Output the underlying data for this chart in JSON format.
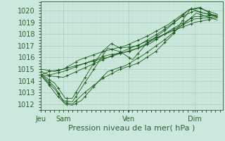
{
  "xlabel": "Pression niveau de la mer( hPa )",
  "ylim": [
    1011.5,
    1020.8
  ],
  "bg_color": "#cce8dd",
  "grid_major_color": "#a8c8b8",
  "grid_minor_color": "#c0ddd0",
  "line_color": "#1a5c1a",
  "yticks": [
    1012,
    1013,
    1014,
    1015,
    1016,
    1017,
    1018,
    1019,
    1020
  ],
  "font_color": "#2d6030",
  "font_size": 7,
  "xlabel_fontsize": 8,
  "xtick_labels": [
    "Jeu",
    "Sam",
    "Ven",
    "Dim"
  ],
  "xtick_positions": [
    0.0,
    0.13,
    0.5,
    0.87
  ]
}
